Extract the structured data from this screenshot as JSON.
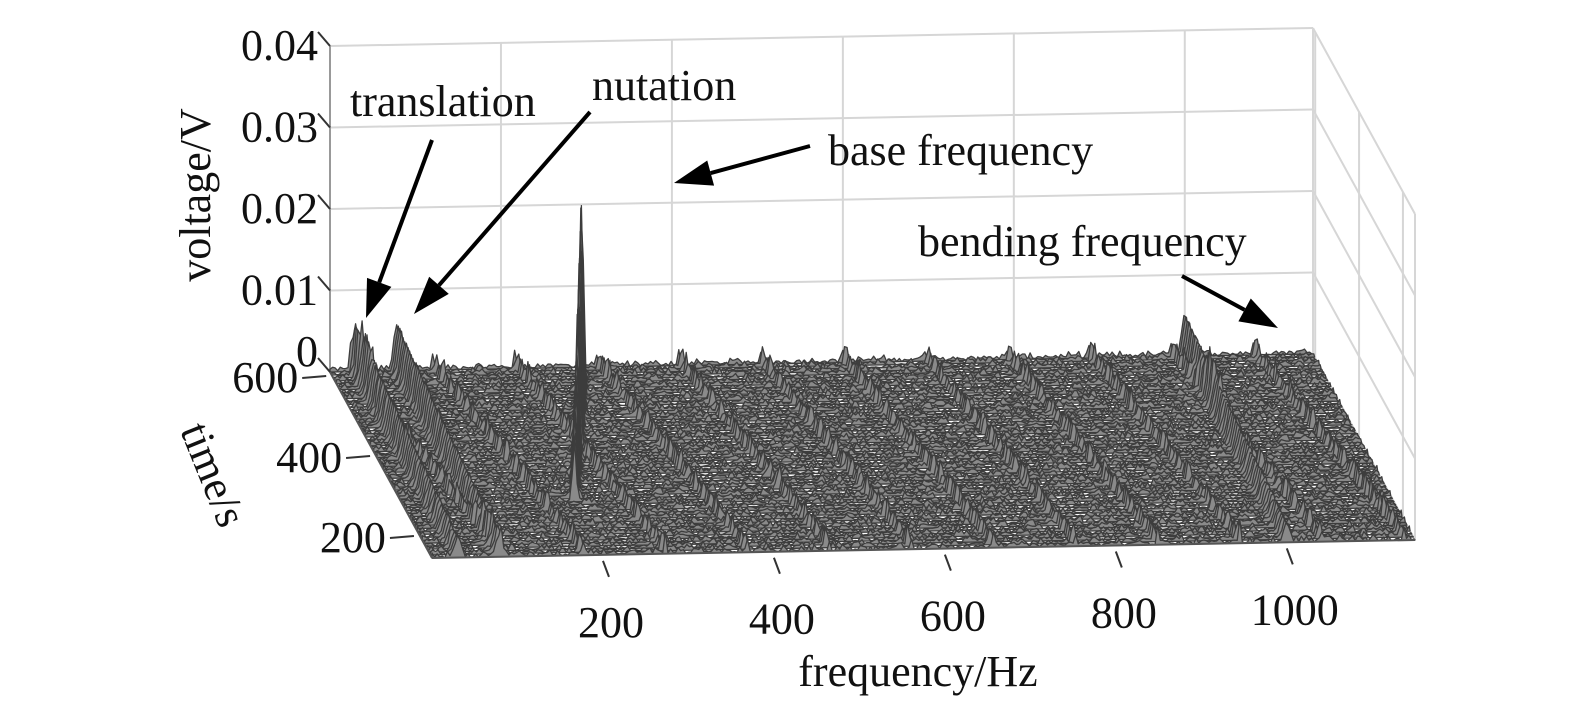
{
  "chart_data": {
    "type": "waterfall",
    "title": "",
    "xlabel": "frequency/Hz",
    "ylabel": "time/s",
    "zlabel": "voltage/V",
    "xlim": [
      0,
      1150
    ],
    "ylim": [
      145,
      610
    ],
    "zlim": [
      0,
      0.04
    ],
    "grid": true,
    "xticks": [
      200,
      400,
      600,
      800,
      1000
    ],
    "xtick_labels": [
      "200",
      "400",
      "600",
      "800",
      "1000"
    ],
    "yticks": [
      200,
      400,
      600
    ],
    "ytick_labels": [
      "200",
      "400",
      "600"
    ],
    "zticks": [
      0.04,
      0.03,
      0.02,
      0.01,
      0
    ],
    "ztick_labels": [
      "0.04",
      "0.03",
      "0.02",
      "0.01",
      "0"
    ],
    "peaks": [
      {
        "name": "translation",
        "freq_hz": 30,
        "amp_v": 0.0055,
        "width_hz": 5
      },
      {
        "name": "nutation",
        "freq_hz": 78,
        "amp_v": 0.0055,
        "width_hz": 5
      },
      {
        "name": "base frequency",
        "freq_hz_range": [
          200,
          285
        ],
        "amp_v_range": [
          0.008,
          0.024
        ],
        "width_hz": 3
      },
      {
        "name": "bending frequency",
        "freq_hz": 1000,
        "amp_v": 0.005,
        "width_hz": 5
      }
    ],
    "harmonic_spacing_hz": 96,
    "harmonic_amp_v": 0.0015,
    "noise_amp_v": 0.0009,
    "annotations": [
      {
        "text": "translation",
        "target": "translation"
      },
      {
        "text": "nutation",
        "target": "nutation"
      },
      {
        "text": "base frequency",
        "target": "base frequency"
      },
      {
        "text": "bending frequency",
        "target": "bending frequency"
      }
    ]
  }
}
